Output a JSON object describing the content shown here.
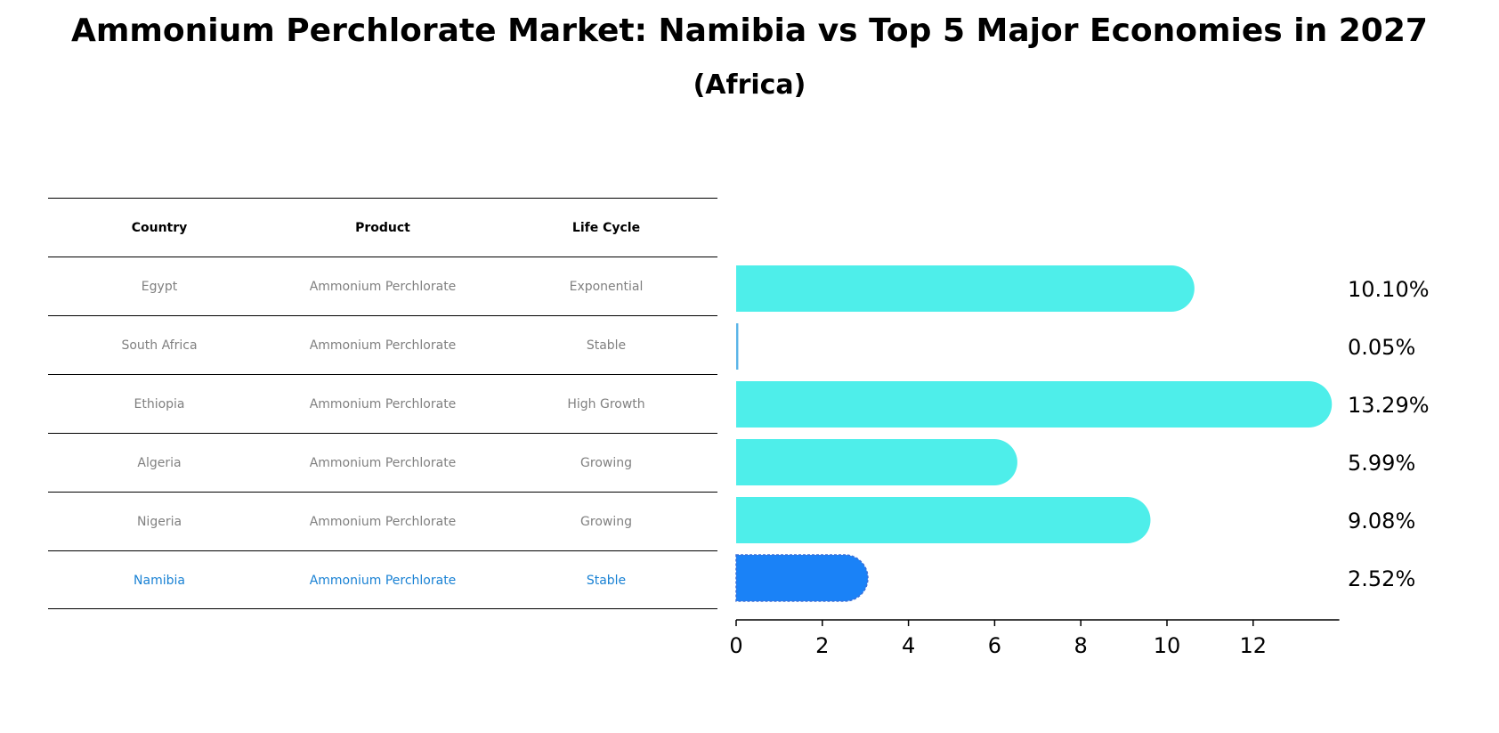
{
  "title": "Ammonium Perchlorate Market: Namibia vs Top 5 Major Economies in 2027",
  "subtitle": "(Africa)",
  "table": {
    "headers": [
      "Country",
      "Product",
      "Life Cycle"
    ],
    "rows": [
      {
        "country": "Egypt",
        "product": "Ammonium Perchlorate",
        "life_cycle": "Exponential"
      },
      {
        "country": "South Africa",
        "product": "Ammonium Perchlorate",
        "life_cycle": "Stable"
      },
      {
        "country": "Ethiopia",
        "product": "Ammonium Perchlorate",
        "life_cycle": "High Growth"
      },
      {
        "country": "Algeria",
        "product": "Ammonium Perchlorate",
        "life_cycle": "Growing"
      },
      {
        "country": "Nigeria",
        "product": "Ammonium Perchlorate",
        "life_cycle": "Growing"
      },
      {
        "country": "Namibia",
        "product": "Ammonium Perchlorate",
        "life_cycle": "Stable"
      }
    ]
  },
  "chart_data": {
    "type": "bar",
    "orientation": "horizontal",
    "categories": [
      "Egypt",
      "South Africa",
      "Ethiopia",
      "Algeria",
      "Nigeria",
      "Namibia"
    ],
    "values": [
      10.1,
      0.05,
      13.29,
      5.99,
      9.08,
      2.52
    ],
    "value_labels": [
      "10.10%",
      "0.05%",
      "13.29%",
      "5.99%",
      "9.08%",
      "2.52%"
    ],
    "highlight": "Namibia",
    "xlim": [
      0,
      14
    ],
    "xticks": [
      0,
      2,
      4,
      6,
      8,
      10,
      12
    ],
    "xlabel": "",
    "ylabel": "",
    "colors": {
      "default": "#4eeeea",
      "highlight": "#1a82f7",
      "thin": "#5ab4e8"
    }
  }
}
